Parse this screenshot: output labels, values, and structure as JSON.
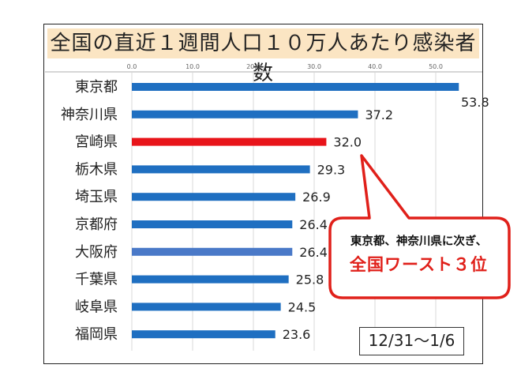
{
  "title": "全国の直近１週間人口１０万人あたり感染者数",
  "callout": {
    "line1": "東京都、神奈川県に次ぎ、",
    "line2": "全国ワースト３位"
  },
  "date_range": "12/31〜1/6",
  "colors": {
    "bar": "#1f6fc1",
    "highlight": "#e8141a",
    "osaka": "#4a79c8",
    "title_band": "#fbe5c3",
    "callout_border": "#e0201a"
  },
  "chart_data": {
    "type": "bar",
    "orientation": "horizontal",
    "title": "全国の直近１週間人口１０万人あたり感染者数",
    "categories": [
      "東京都",
      "神奈川県",
      "宮崎県",
      "栃木県",
      "埼玉県",
      "京都府",
      "大阪府",
      "千葉県",
      "岐阜県",
      "福岡県"
    ],
    "values": [
      53.8,
      37.2,
      32.0,
      29.3,
      26.9,
      26.4,
      26.4,
      25.8,
      24.5,
      23.6
    ],
    "value_labels": [
      "53.8",
      "37.2",
      "32.0",
      "29.3",
      "26.9",
      "26.4",
      "26.4",
      "25.8",
      "24.5",
      "23.6"
    ],
    "highlight": "宮崎県",
    "xlim": [
      0,
      60
    ],
    "ticks": [
      "0.0",
      "10.0",
      "20.0",
      "30.0",
      "40.0",
      "50.0"
    ],
    "tick_values": [
      0,
      10,
      20,
      30,
      40,
      50
    ],
    "grid": true,
    "legend": "none"
  }
}
